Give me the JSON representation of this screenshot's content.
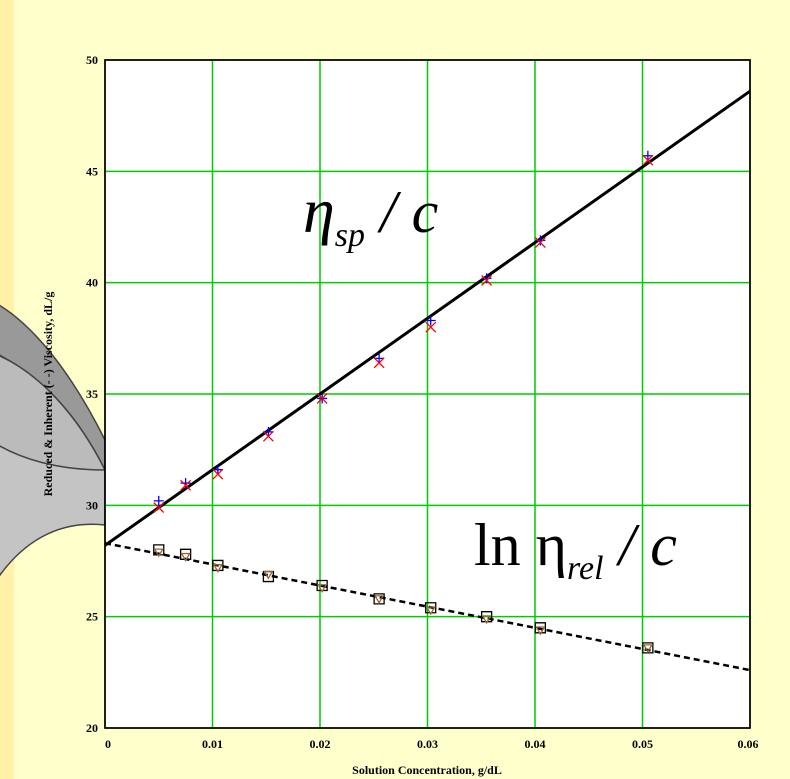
{
  "chart_data": {
    "type": "scatter",
    "xlabel": "Solution Concentration, g/dL",
    "ylabel": "Reduced & Inherent (- -) Viscosity, dL/g",
    "xlim": [
      0,
      0.06
    ],
    "ylim": [
      20,
      50
    ],
    "x_ticks": [
      "0",
      "0.01",
      "0.02",
      "0.03",
      "0.04",
      "0.05",
      "0.06"
    ],
    "y_ticks": [
      "20",
      "25",
      "30",
      "35",
      "40",
      "45",
      "50"
    ],
    "grid": true,
    "grid_color": "#00cc00",
    "annotations": [
      {
        "main": "η",
        "sub": "sp",
        "rest": " / c"
      },
      {
        "main": "ln η",
        "sub": "rel",
        "rest": " / c"
      }
    ],
    "series": [
      {
        "kind": "line",
        "style": "solid",
        "color": "#000000",
        "x": [
          0,
          0.06
        ],
        "y": [
          28.2,
          48.6
        ]
      },
      {
        "kind": "line",
        "style": "dashed",
        "color": "#000000",
        "x": [
          0,
          0.06
        ],
        "y": [
          28.3,
          22.6
        ]
      },
      {
        "kind": "points",
        "marker": "plus",
        "color": "#0000ff",
        "x": [
          0.005,
          0.0075,
          0.0105,
          0.0152,
          0.0202,
          0.0255,
          0.0303,
          0.0355,
          0.0405,
          0.0505
        ],
        "y": [
          30.2,
          31.0,
          31.6,
          33.3,
          34.8,
          36.6,
          38.3,
          40.2,
          41.9,
          45.7
        ]
      },
      {
        "kind": "points",
        "marker": "x",
        "color": "#ff0000",
        "x": [
          0.005,
          0.0075,
          0.0105,
          0.0152,
          0.0202,
          0.0255,
          0.0303,
          0.0355,
          0.0405,
          0.0505
        ],
        "y": [
          29.9,
          30.9,
          31.4,
          33.1,
          34.8,
          36.4,
          38.0,
          40.1,
          41.8,
          45.5
        ]
      },
      {
        "kind": "points",
        "marker": "square",
        "color": "#000000",
        "x": [
          0.005,
          0.0075,
          0.0105,
          0.0152,
          0.0202,
          0.0255,
          0.0303,
          0.0355,
          0.0405,
          0.0505
        ],
        "y": [
          28.0,
          27.8,
          27.3,
          26.8,
          26.4,
          25.8,
          25.4,
          25.0,
          24.5,
          23.6
        ]
      },
      {
        "kind": "points",
        "marker": "triangle",
        "color": "#996633",
        "x": [
          0.005,
          0.0075,
          0.0105,
          0.0152,
          0.0202,
          0.0255,
          0.0303,
          0.0355,
          0.0405,
          0.0505
        ],
        "y": [
          27.9,
          27.7,
          27.2,
          26.9,
          26.3,
          25.8,
          25.3,
          24.9,
          24.4,
          23.6
        ]
      }
    ]
  }
}
